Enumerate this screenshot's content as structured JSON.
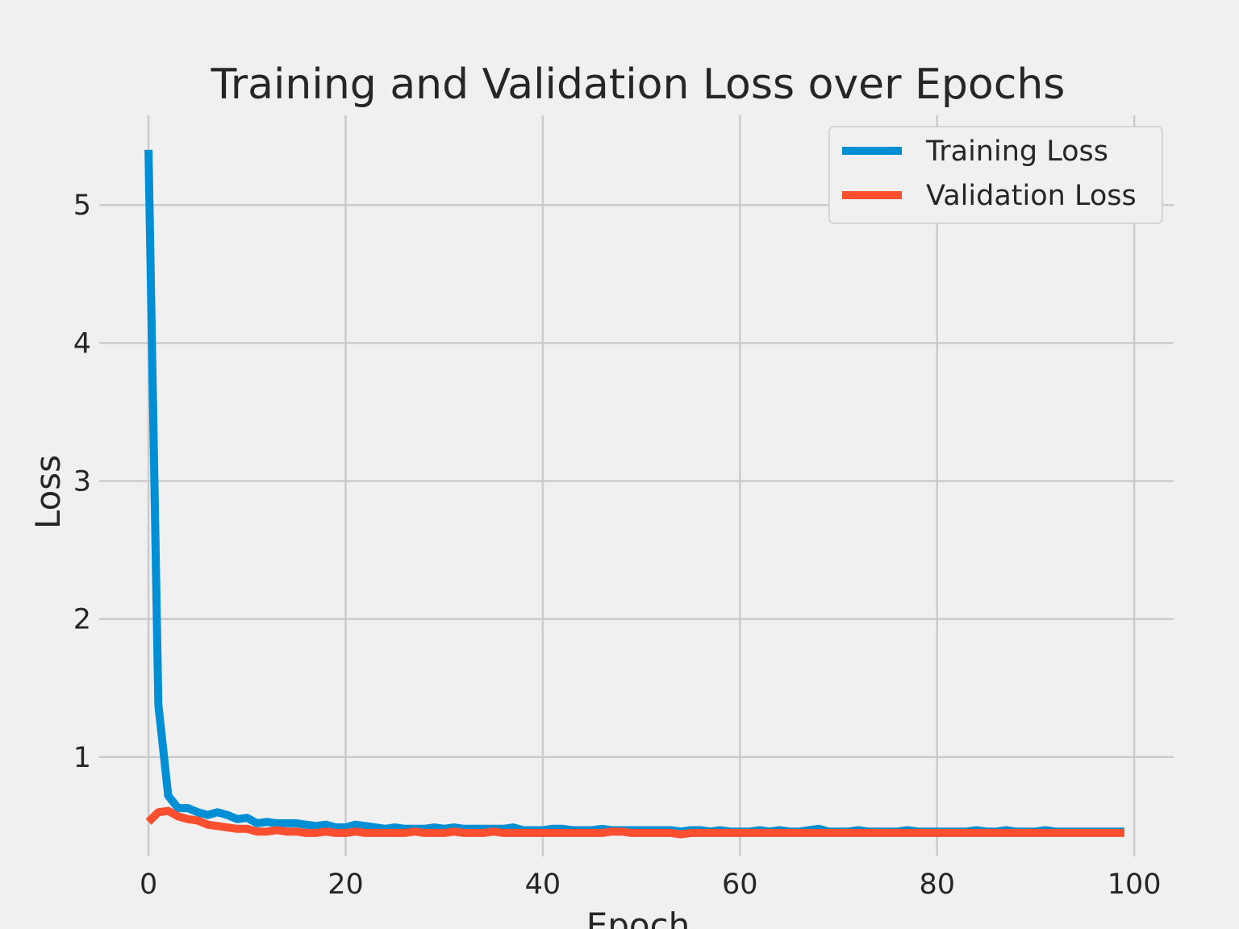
{
  "chart_data": {
    "type": "line",
    "title": "Training and Validation Loss over Epochs",
    "xlabel": "Epoch",
    "ylabel": "Loss",
    "xlim": [
      -5,
      104
    ],
    "ylim": [
      0.28,
      5.65
    ],
    "xticks": [
      0,
      20,
      40,
      60,
      80,
      100
    ],
    "yticks": [
      1,
      2,
      3,
      4,
      5
    ],
    "grid": true,
    "legend_position": "top-right",
    "colors": {
      "Training Loss": "#008fd5",
      "Validation Loss": "#fc4f30"
    },
    "series": [
      {
        "name": "Training Loss",
        "x_start": 0,
        "values": [
          5.4,
          1.38,
          0.72,
          0.63,
          0.63,
          0.6,
          0.58,
          0.6,
          0.58,
          0.55,
          0.56,
          0.52,
          0.53,
          0.52,
          0.52,
          0.52,
          0.51,
          0.5,
          0.51,
          0.49,
          0.49,
          0.51,
          0.5,
          0.49,
          0.48,
          0.49,
          0.48,
          0.48,
          0.48,
          0.49,
          0.48,
          0.49,
          0.48,
          0.48,
          0.48,
          0.48,
          0.48,
          0.49,
          0.47,
          0.47,
          0.47,
          0.48,
          0.48,
          0.47,
          0.47,
          0.47,
          0.48,
          0.47,
          0.47,
          0.47,
          0.47,
          0.47,
          0.47,
          0.47,
          0.46,
          0.47,
          0.47,
          0.46,
          0.47,
          0.46,
          0.46,
          0.46,
          0.47,
          0.46,
          0.47,
          0.46,
          0.46,
          0.47,
          0.48,
          0.46,
          0.46,
          0.46,
          0.47,
          0.46,
          0.46,
          0.46,
          0.46,
          0.47,
          0.46,
          0.46,
          0.46,
          0.46,
          0.46,
          0.46,
          0.47,
          0.46,
          0.46,
          0.47,
          0.46,
          0.46,
          0.46,
          0.47,
          0.46,
          0.46,
          0.46,
          0.46,
          0.46,
          0.46,
          0.46,
          0.46
        ]
      },
      {
        "name": "Validation Loss",
        "x_start": 0,
        "values": [
          0.53,
          0.6,
          0.61,
          0.57,
          0.55,
          0.54,
          0.51,
          0.5,
          0.49,
          0.48,
          0.48,
          0.46,
          0.46,
          0.47,
          0.46,
          0.46,
          0.45,
          0.45,
          0.46,
          0.45,
          0.45,
          0.46,
          0.45,
          0.45,
          0.45,
          0.45,
          0.45,
          0.46,
          0.45,
          0.45,
          0.45,
          0.46,
          0.45,
          0.45,
          0.45,
          0.46,
          0.45,
          0.45,
          0.45,
          0.45,
          0.45,
          0.45,
          0.45,
          0.45,
          0.45,
          0.45,
          0.45,
          0.46,
          0.46,
          0.45,
          0.45,
          0.45,
          0.45,
          0.45,
          0.44,
          0.45,
          0.45,
          0.45,
          0.45,
          0.45,
          0.45,
          0.45,
          0.45,
          0.45,
          0.45,
          0.45,
          0.45,
          0.45,
          0.45,
          0.45,
          0.45,
          0.45,
          0.45,
          0.45,
          0.45,
          0.45,
          0.45,
          0.45,
          0.45,
          0.45,
          0.45,
          0.45,
          0.45,
          0.45,
          0.45,
          0.45,
          0.45,
          0.45,
          0.45,
          0.45,
          0.45,
          0.45,
          0.45,
          0.45,
          0.45,
          0.45,
          0.45,
          0.45,
          0.45,
          0.45
        ]
      }
    ]
  }
}
